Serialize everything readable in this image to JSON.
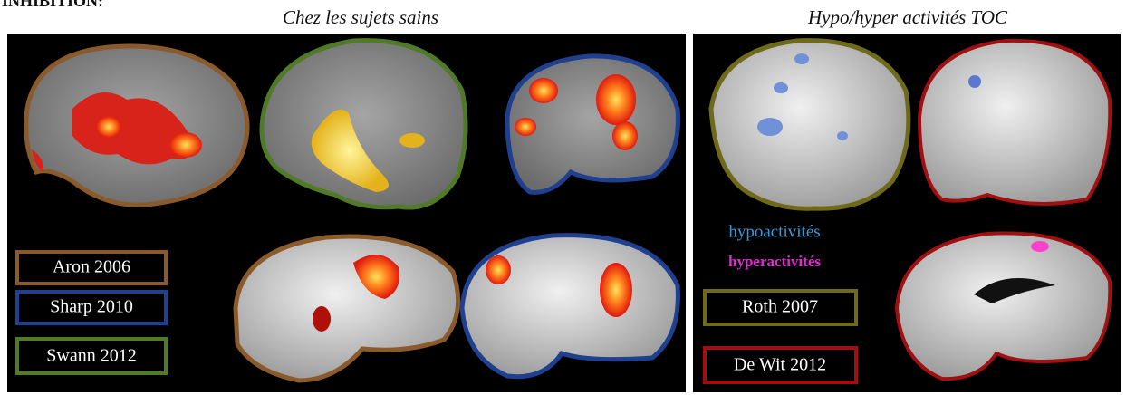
{
  "header": {
    "section": "INHIBITION:",
    "left_title": "Chez les sujets sains",
    "right_title": "Hypo/hyper activités TOC"
  },
  "left_panel": {
    "legend": [
      "Aron 2006",
      "Sharp 2010",
      "Swann 2012"
    ]
  },
  "right_panel": {
    "legend_activity": [
      "hypoactivités",
      "hyperactivités"
    ],
    "legend": [
      "Roth 2007",
      "De Wit 2012"
    ]
  }
}
